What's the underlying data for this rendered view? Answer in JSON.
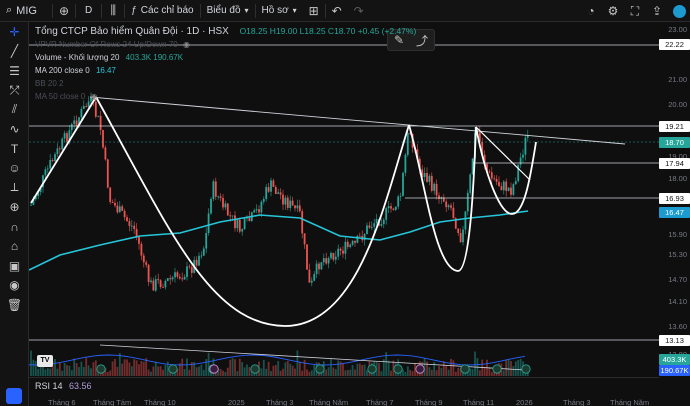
{
  "toolbar": {
    "symbol": "MIG",
    "interval": "D",
    "indicators_label": "Các chỉ báo",
    "chart_type_label": "Biểu đồ",
    "profile_label": "Hồ sơ"
  },
  "chart": {
    "title": "Tổng CTCP Bảo hiểm Quân Đội · 1D · HSX",
    "ohlc": "O18.25 H19.00 L18.25 C18.70 +0.45 (+2.47%)",
    "indicators": [
      {
        "label": "VPVR Number Of Rows 24 Up/Down 70",
        "value": "",
        "dim": true
      },
      {
        "label": "Volume - Khối lượng 20",
        "value": "403.3K  190.67K",
        "dim": false
      },
      {
        "label": "MA 200 close 0",
        "value": "16.47",
        "dim": false
      },
      {
        "label": "BB 20 2",
        "value": "",
        "dim": true
      },
      {
        "label": "MA 50 close 0",
        "value": "",
        "dim": true
      }
    ],
    "rsi_label": "RSI 14",
    "rsi_value": "63.56",
    "colors": {
      "up": "#26a69a",
      "down": "#ef5350",
      "ma": "#26c6da",
      "drawing": "#ffffff"
    }
  },
  "price_axis": {
    "ticks": [
      "23.00",
      "22.00",
      "21.00",
      "20.00",
      "19.00",
      "18.00",
      "17.00",
      "16.00",
      "15.90",
      "15.30",
      "14.70",
      "14.10",
      "13.60",
      "12.80"
    ],
    "tags": [
      {
        "text": "22.22",
        "style": "white"
      },
      {
        "text": "19.21",
        "style": "white"
      },
      {
        "text": "18.70",
        "style": "green"
      },
      {
        "text": "17.94",
        "style": "white"
      },
      {
        "text": "16.93",
        "style": "white"
      },
      {
        "text": "16.47",
        "style": "cyan"
      },
      {
        "text": "13.13",
        "style": "white"
      },
      {
        "text": "403.3K",
        "style": "green"
      },
      {
        "text": "190.67K",
        "style": "blue"
      }
    ]
  },
  "time_axis": [
    "Tháng 6",
    "Tháng Tám",
    "Tháng 10",
    "2025",
    "Tháng 3",
    "Tháng Năm",
    "Tháng 7",
    "Tháng 9",
    "Tháng 11",
    "2026",
    "Tháng 3",
    "Tháng Năm"
  ]
}
